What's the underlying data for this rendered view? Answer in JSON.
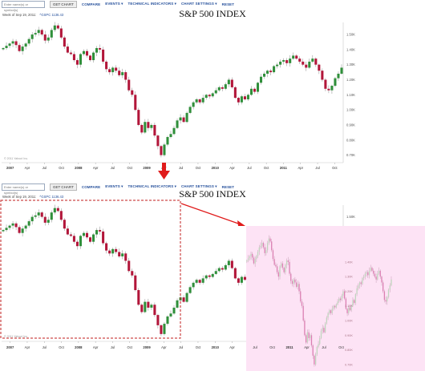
{
  "toolbar": {
    "symbol_placeholder": "Enter name(s) or symbol(s)",
    "get_chart": "GET CHART",
    "compare": "COMPARE",
    "events": "EVENTS ▾",
    "technical_indicators": "TECHNICAL INDICATORS ▾",
    "chart_settings": "CHART SETTINGS ▾",
    "reset": "RESET"
  },
  "chart_header": {
    "week_label": "Week of Sep 19, 2011:",
    "ticker_text": "^GSPC 1136.43"
  },
  "footer_text": "© 2011 Yahoo! Inc.",
  "colors": {
    "up": "#2f8f3a",
    "down": "#b2163a",
    "arrow": "#e01b1b",
    "dashed_box": "#c21d1d",
    "overlay": "#fde3f5",
    "overlay_candle": "#d873aa"
  },
  "chart_data": [
    {
      "type": "candlestick",
      "title": "S&P 500 INDEX",
      "x_ticks": [
        "2007",
        "Apr",
        "Jul",
        "Oct",
        "2008",
        "Apr",
        "Jul",
        "Oct",
        "2009",
        "Apr",
        "Jul",
        "Oct",
        "2010",
        "Apr",
        "Jul",
        "Oct",
        "2011",
        "Apr",
        "Jul",
        "Oct"
      ],
      "y_ticks": [
        "1.50K",
        "1.40K",
        "1.30K",
        "1.20K",
        "1.10K",
        "1.00K",
        "0.90K",
        "0.80K",
        "0.70K"
      ],
      "ylim": [
        650,
        1580
      ],
      "weekly_close": [
        1410,
        1425,
        1440,
        1455,
        1430,
        1390,
        1420,
        1440,
        1470,
        1500,
        1510,
        1530,
        1500,
        1460,
        1480,
        1530,
        1560,
        1540,
        1480,
        1420,
        1380,
        1370,
        1330,
        1300,
        1370,
        1390,
        1360,
        1330,
        1380,
        1410,
        1400,
        1320,
        1270,
        1250,
        1280,
        1260,
        1230,
        1250,
        1200,
        1130,
        1100,
        1000,
        900,
        850,
        920,
        880,
        900,
        830,
        760,
        700,
        770,
        820,
        840,
        880,
        930,
        950,
        920,
        980,
        1020,
        1050,
        1070,
        1050,
        1080,
        1100,
        1090,
        1110,
        1130,
        1150,
        1140,
        1170,
        1200,
        1150,
        1080,
        1050,
        1090,
        1070,
        1100,
        1140,
        1120,
        1180,
        1220,
        1240,
        1260,
        1250,
        1290,
        1300,
        1320,
        1330,
        1310,
        1340,
        1360,
        1340,
        1320,
        1300,
        1280,
        1320,
        1340,
        1300,
        1260,
        1200,
        1140,
        1130,
        1160,
        1210,
        1240,
        1280
      ]
    },
    {
      "type": "candlestick",
      "title": "S&P 500 INDEX",
      "x_ticks": [
        "2007",
        "Apr",
        "Jul",
        "Oct",
        "2008",
        "Apr",
        "Jul",
        "Oct",
        "2009",
        "Apr",
        "Jul",
        "Oct",
        "2010",
        "Apr",
        "Jul",
        "Oct",
        "2011",
        "Apr",
        "Jul",
        "Oct"
      ],
      "y_ticks": [
        "1.50K",
        "1.40K",
        "1.30K",
        "1.20K",
        "1.10K",
        "1.00K",
        "0.90K",
        "0.80K",
        "0.70K"
      ],
      "ylim": [
        650,
        1580
      ],
      "annotation": "2007–2009 segment is highlighted with a dashed box; an arrow points to the same segment overlaid on the right, starting at 2010",
      "overlay_x_ticks": [
        "Jul",
        "Oct",
        "2011",
        "Apr",
        "Jul",
        "Oct"
      ],
      "weekly_close_ref": "same as panel 1"
    }
  ]
}
